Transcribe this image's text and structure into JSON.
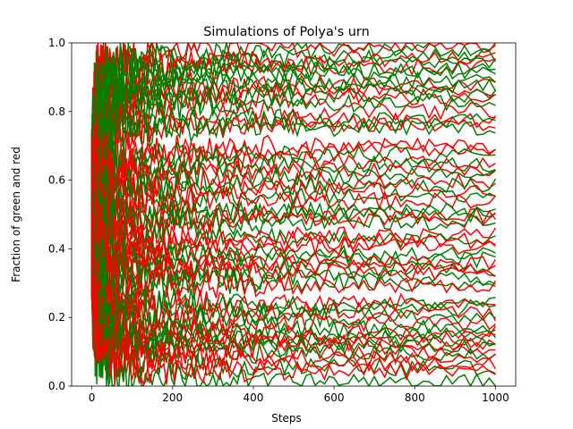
{
  "chart_data": {
    "type": "line",
    "title": "Simulations of Polya's urn",
    "xlabel": "Steps",
    "ylabel": "Fraction of green and red",
    "xlim": [
      -50,
      1050
    ],
    "ylim": [
      0,
      1
    ],
    "xticks": [
      0,
      200,
      400,
      600,
      800,
      1000
    ],
    "yticks": [
      0.0,
      0.2,
      0.4,
      0.6,
      0.8,
      1.0
    ],
    "xtick_labels": [
      "0",
      "200",
      "400",
      "600",
      "800",
      "1000"
    ],
    "ytick_labels": [
      "0.0",
      "0.2",
      "0.4",
      "0.6",
      "0.8",
      "1.0"
    ],
    "steps": [
      0,
      1000
    ],
    "grid": false,
    "legend": "none",
    "colors": {
      "red": "#ff0000",
      "green": "#008000",
      "axes": "#000000"
    },
    "series": [
      {
        "color": "red",
        "final_values": [
          0.993,
          0.955,
          0.935,
          0.882,
          0.862,
          0.845,
          0.805,
          0.775,
          0.765,
          0.702,
          0.69,
          0.655,
          0.628,
          0.595,
          0.57,
          0.54,
          0.497,
          0.485,
          0.44,
          0.422,
          0.405,
          0.36,
          0.35,
          0.33,
          0.29,
          0.24,
          0.21,
          0.18,
          0.15,
          0.13,
          0.12,
          0.1,
          0.075,
          0.06,
          0.04
        ]
      },
      {
        "color": "green",
        "final_values": [
          0.985,
          0.965,
          0.945,
          0.925,
          0.915,
          0.895,
          0.875,
          0.85,
          0.83,
          0.78,
          0.755,
          0.675,
          0.645,
          0.615,
          0.585,
          0.555,
          0.51,
          0.5,
          0.475,
          0.43,
          0.385,
          0.37,
          0.34,
          0.315,
          0.3,
          0.235,
          0.225,
          0.195,
          0.165,
          0.145,
          0.13,
          0.11,
          0.09,
          0.05,
          0.008
        ]
      }
    ]
  }
}
